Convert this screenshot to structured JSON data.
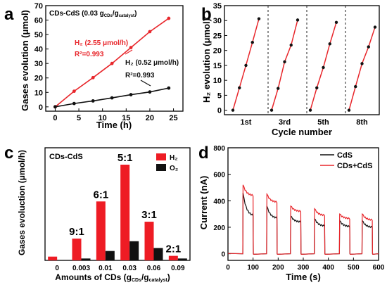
{
  "chart_data": [
    {
      "panel": "a",
      "type": "line",
      "title": "",
      "annotation": "CDs-CdS (0.03 gCDs/gcatalyst)",
      "annotation_parts": {
        "main": "CDs-CdS (0.03 g",
        "sub1": "CDs",
        "mid": "/g",
        "sub2": "catalyst",
        "end": ")"
      },
      "xlabel": "Time (h)",
      "ylabel": "Gases evolution (μmol)",
      "xlim": [
        -2,
        27
      ],
      "ylim": [
        -3,
        70
      ],
      "xticks": [
        "0",
        "5",
        "10",
        "15",
        "20",
        "25"
      ],
      "yticks": [
        "0",
        "10",
        "20",
        "30",
        "40",
        "50",
        "60",
        "70"
      ],
      "series": [
        {
          "name": "H2 (2.55 μmol/h)",
          "color": "#e8262b",
          "x": [
            0,
            4,
            8,
            12,
            16,
            20,
            24
          ],
          "y": [
            0,
            10.8,
            20.2,
            30.0,
            41.0,
            52.0,
            61.2
          ]
        },
        {
          "name": "H2 (0.52 μmol/h)",
          "color": "#111111",
          "x": [
            0,
            4,
            8,
            12,
            16,
            20,
            24
          ],
          "y": [
            0,
            2.3,
            4.1,
            6.2,
            8.4,
            10.3,
            13.0
          ]
        }
      ],
      "labels": {
        "red_rate": "H₂ (2.55 μmol/h)",
        "red_r2": "R²=0.993",
        "black_rate": "H₂ (0.52 μmol/h)",
        "black_r2": "R²=0.993"
      }
    },
    {
      "panel": "b",
      "type": "line",
      "title": "",
      "xlabel": "Cycle number",
      "ylabel": "H₂ evolution (μmol)",
      "ylim": [
        -1.5,
        35
      ],
      "yticks": [
        "0",
        "5",
        "10",
        "15",
        "20",
        "25",
        "30",
        "35"
      ],
      "cycle_labels": [
        "1st",
        "3rd",
        "5th",
        "8th"
      ],
      "series": [
        {
          "name": "",
          "color": "#e8262b",
          "cycles": [
            [
              0,
              7.5,
              15.0,
              22.7,
              30.6
            ],
            [
              0,
              7.3,
              16.2,
              21.8,
              30.2
            ],
            [
              0,
              7.5,
              14.3,
              22.2,
              29.4
            ],
            [
              0,
              7.9,
              15.6,
              21.2,
              27.8
            ]
          ]
        }
      ]
    },
    {
      "panel": "c",
      "type": "bar",
      "title": "",
      "annotation": "CDs-CdS",
      "xlabel": "Amounts of CDs (gCDs/gcatalyst)",
      "xlabel_parts": {
        "main": "Amounts of CDs (g",
        "sub1": "CDs",
        "mid": "/g",
        "sub2": "catalyst",
        "end": ")"
      },
      "ylabel": "Gases evoluction (μmol/h)",
      "categories": [
        "0",
        "0.003",
        "0.01",
        "0.03",
        "0.06",
        "0.09"
      ],
      "ratio_labels": [
        "",
        "9:1",
        "6:1",
        "5:1",
        "3:1",
        "2:1"
      ],
      "ylim": [
        0,
        3.0
      ],
      "series": [
        {
          "name": "H₂",
          "color": "#ee1c24",
          "values": [
            0.1,
            0.58,
            1.57,
            2.55,
            1.03,
            0.12
          ]
        },
        {
          "name": "O₂",
          "color": "#111111",
          "values": [
            0.0,
            0.05,
            0.25,
            0.51,
            0.33,
            0.05
          ]
        }
      ]
    },
    {
      "panel": "d",
      "type": "line",
      "title": "",
      "xlabel": "Time (s)",
      "ylabel": "Current (nA)",
      "xlim": [
        0,
        600
      ],
      "ylim": [
        -50,
        800
      ],
      "xticks": [
        "0",
        "100",
        "200",
        "300",
        "400",
        "500",
        "600"
      ],
      "yticks": [
        "0",
        "200",
        "400",
        "600",
        "800"
      ],
      "light_cycles": [
        [
          60,
          100
        ],
        [
          155,
          195
        ],
        [
          250,
          290
        ],
        [
          345,
          385
        ],
        [
          445,
          485
        ],
        [
          535,
          575
        ]
      ],
      "series": [
        {
          "name": "CdS",
          "color": "#111111",
          "peaks": [
            460,
            360,
            285,
            265,
            250,
            250
          ],
          "ends": [
            290,
            270,
            240,
            210,
            205,
            200
          ]
        },
        {
          "name": "CDs+CdS",
          "color": "#e8262b",
          "peaks": [
            520,
            450,
            360,
            340,
            300,
            300
          ],
          "ends": [
            440,
            390,
            320,
            290,
            265,
            255
          ]
        }
      ]
    }
  ],
  "panel_letters": {
    "a": "a",
    "b": "b",
    "c": "c",
    "d": "d"
  }
}
